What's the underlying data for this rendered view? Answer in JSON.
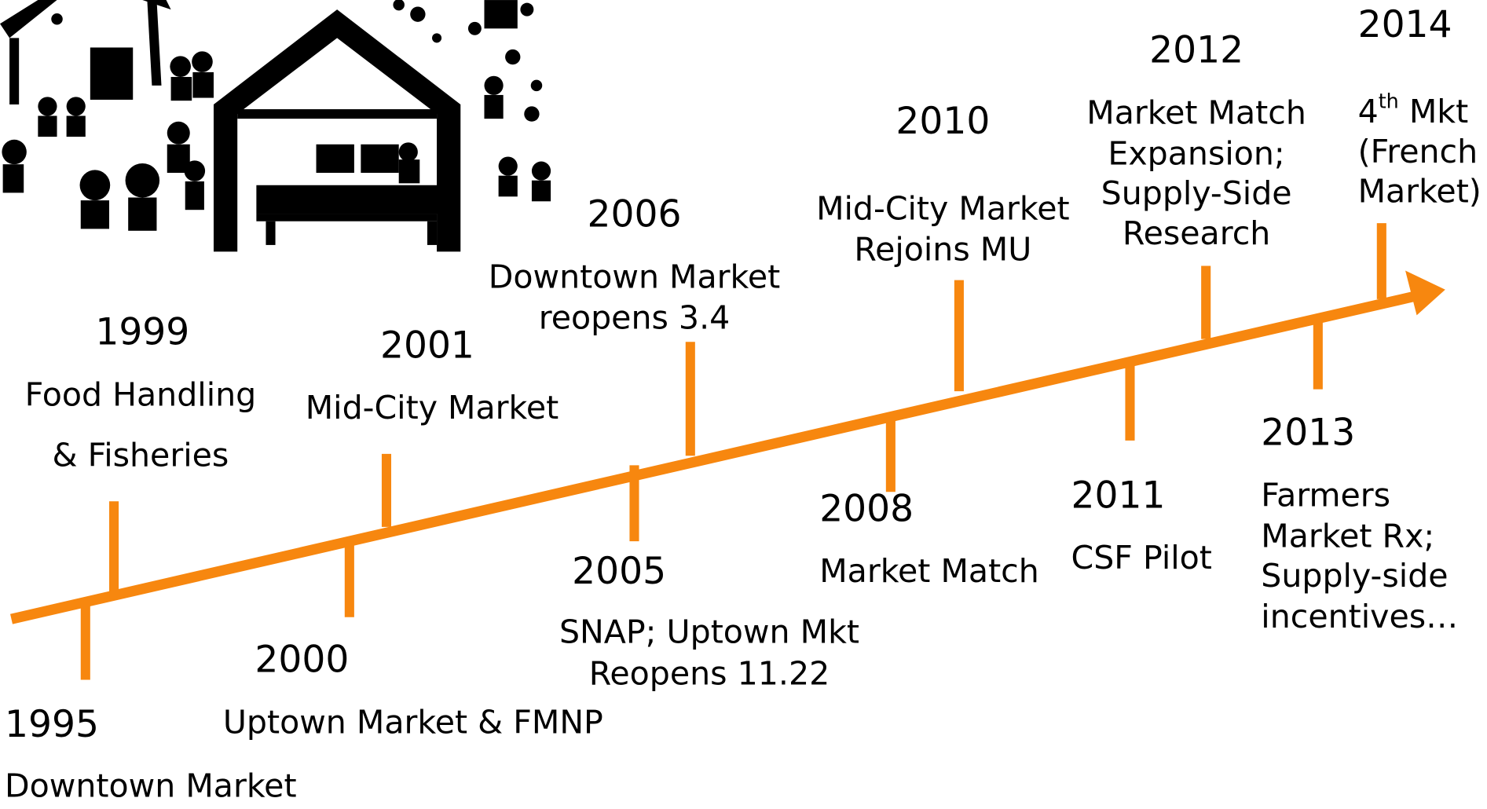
{
  "events": [
    {
      "year": "1995",
      "lines": [
        "Downtown Market"
      ]
    },
    {
      "year": "1999",
      "lines": [
        "Food Handling",
        "& Fisheries"
      ]
    },
    {
      "year": "2000",
      "lines": [
        "Uptown Market & FMNP"
      ]
    },
    {
      "year": "2001",
      "lines": [
        "Mid-City Market"
      ]
    },
    {
      "year": "2005",
      "lines": [
        "SNAP; Uptown Mkt",
        "Reopens 11.22"
      ]
    },
    {
      "year": "2006",
      "lines": [
        "Downtown Market",
        "reopens 3.4"
      ]
    },
    {
      "year": "2008",
      "lines": [
        "Market Match"
      ]
    },
    {
      "year": "2010",
      "lines": [
        "Mid-City Market",
        "Rejoins MU"
      ]
    },
    {
      "year": "2011",
      "lines": [
        "CSF Pilot"
      ]
    },
    {
      "year": "2012",
      "lines": [
        "Market Match",
        "Expansion;",
        "Supply-Side",
        "Research"
      ]
    },
    {
      "year": "2013",
      "lines": [
        "Farmers",
        "Market Rx;",
        "Supply-side",
        "incentives…"
      ]
    },
    {
      "year": "2014",
      "lines": [
        {
          "text": "4",
          "sup": "th",
          "after": " Mkt"
        },
        "(French",
        "Market)"
      ]
    }
  ]
}
